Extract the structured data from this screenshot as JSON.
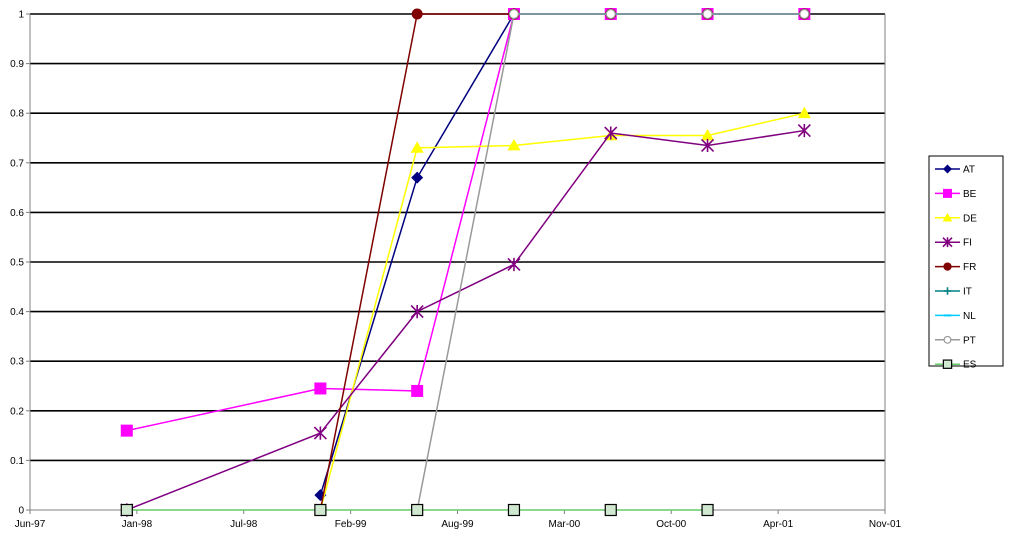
{
  "chart_data": {
    "type": "line",
    "title": "",
    "xlabel": "",
    "ylabel": "",
    "ylim": [
      0,
      1
    ],
    "xlim": [
      "1997-06",
      "2001-11"
    ],
    "y_ticks": [
      "0",
      "0.1",
      "0.2",
      "0.3",
      "0.4",
      "0.5",
      "0.6",
      "0.7",
      "0.8",
      "0.9",
      "1"
    ],
    "x_ticks": [
      "Jun-97",
      "Jan-98",
      "Jul-98",
      "Feb-99",
      "Aug-99",
      "Mar-00",
      "Oct-00",
      "Apr-01",
      "Nov-01"
    ],
    "grid": "horizontal",
    "legend_position": "right",
    "series": [
      {
        "name": "AT",
        "color": "#000080",
        "marker": "diamond",
        "points": [
          [
            "1998-12",
            0.03
          ],
          [
            "1999-06",
            0.67
          ],
          [
            "1999-12",
            1.0
          ],
          [
            "2000-06",
            1.0
          ],
          [
            "2000-12",
            1.0
          ],
          [
            "2001-06",
            1.0
          ]
        ]
      },
      {
        "name": "BE",
        "color": "#FF00FF",
        "marker": "square",
        "points": [
          [
            "1997-12",
            0.16
          ],
          [
            "1998-12",
            0.245
          ],
          [
            "1999-06",
            0.24
          ],
          [
            "1999-12",
            1.0
          ],
          [
            "2000-06",
            1.0
          ],
          [
            "2000-12",
            1.0
          ],
          [
            "2001-06",
            1.0
          ]
        ]
      },
      {
        "name": "DE",
        "color": "#FFFF00",
        "marker": "triangle",
        "points": [
          [
            "1998-12",
            0.0
          ],
          [
            "1999-06",
            0.73
          ],
          [
            "1999-12",
            0.735
          ],
          [
            "2000-06",
            0.755
          ],
          [
            "2000-12",
            0.755
          ],
          [
            "2001-06",
            0.8
          ]
        ]
      },
      {
        "name": "FI",
        "color": "#800080",
        "marker": "star",
        "points": [
          [
            "1997-12",
            0.0
          ],
          [
            "1998-12",
            0.155
          ],
          [
            "1999-06",
            0.4
          ],
          [
            "1999-12",
            0.495
          ],
          [
            "2000-06",
            0.76
          ],
          [
            "2000-12",
            0.735
          ],
          [
            "2001-06",
            0.765
          ]
        ]
      },
      {
        "name": "FR",
        "color": "#800000",
        "marker": "circle",
        "points": [
          [
            "1998-12",
            0.0
          ],
          [
            "1999-06",
            1.0
          ],
          [
            "1999-12",
            1.0
          ],
          [
            "2000-06",
            1.0
          ],
          [
            "2000-12",
            1.0
          ],
          [
            "2001-06",
            1.0
          ]
        ]
      },
      {
        "name": "IT",
        "color": "#008080",
        "marker": "plus",
        "points": [
          [
            "1999-12",
            1.0
          ],
          [
            "2000-06",
            1.0
          ],
          [
            "2000-12",
            1.0
          ],
          [
            "2001-06",
            1.0
          ]
        ]
      },
      {
        "name": "NL",
        "color": "#00CCFF",
        "marker": "dash",
        "points": [
          [
            "1999-12",
            1.0
          ],
          [
            "2000-06",
            1.0
          ],
          [
            "2000-12",
            1.0
          ],
          [
            "2001-06",
            1.0
          ]
        ]
      },
      {
        "name": "PT",
        "color": "#999999",
        "marker": "open-circle",
        "points": [
          [
            "1999-06",
            0.0
          ],
          [
            "1999-12",
            1.0
          ],
          [
            "2000-06",
            1.0
          ],
          [
            "2000-12",
            1.0
          ],
          [
            "2001-06",
            1.0
          ]
        ]
      },
      {
        "name": "ES",
        "color": "#66CC66",
        "marker": "open-square",
        "points": [
          [
            "1997-12",
            0.0
          ],
          [
            "1998-12",
            0.0
          ],
          [
            "1999-06",
            0.0
          ],
          [
            "1999-12",
            0.0
          ],
          [
            "2000-06",
            0.0
          ],
          [
            "2000-12",
            0.0
          ]
        ]
      }
    ]
  }
}
